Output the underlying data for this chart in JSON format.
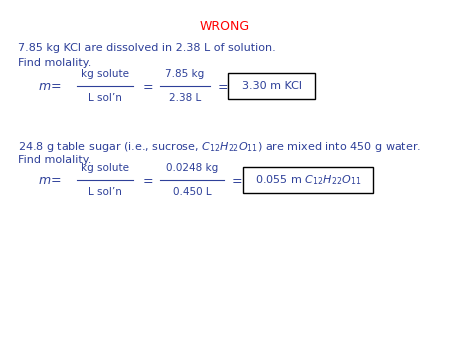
{
  "title": "WRONG",
  "title_color": "#ff0000",
  "text_color": "#2e4099",
  "background_color": "#ffffff",
  "problem1_line1": "7.85 kg KCl are dissolved in 2.38 L of solution.",
  "problem1_line2": "Find molality.",
  "problem2_line1": "24.8 g table sugar (i.e., sucrose, $C_{12}H_{22}O_{11}$) are mixed into 450 g water.",
  "problem2_line2": "Find molality.",
  "eq1_result": "3.30 m KCl",
  "eq2_result": "$0.055$ m $C_{12}H_{22}O_{11}$",
  "title_fontsize": 9,
  "text_fontsize": 8,
  "eq_fontsize": 8
}
